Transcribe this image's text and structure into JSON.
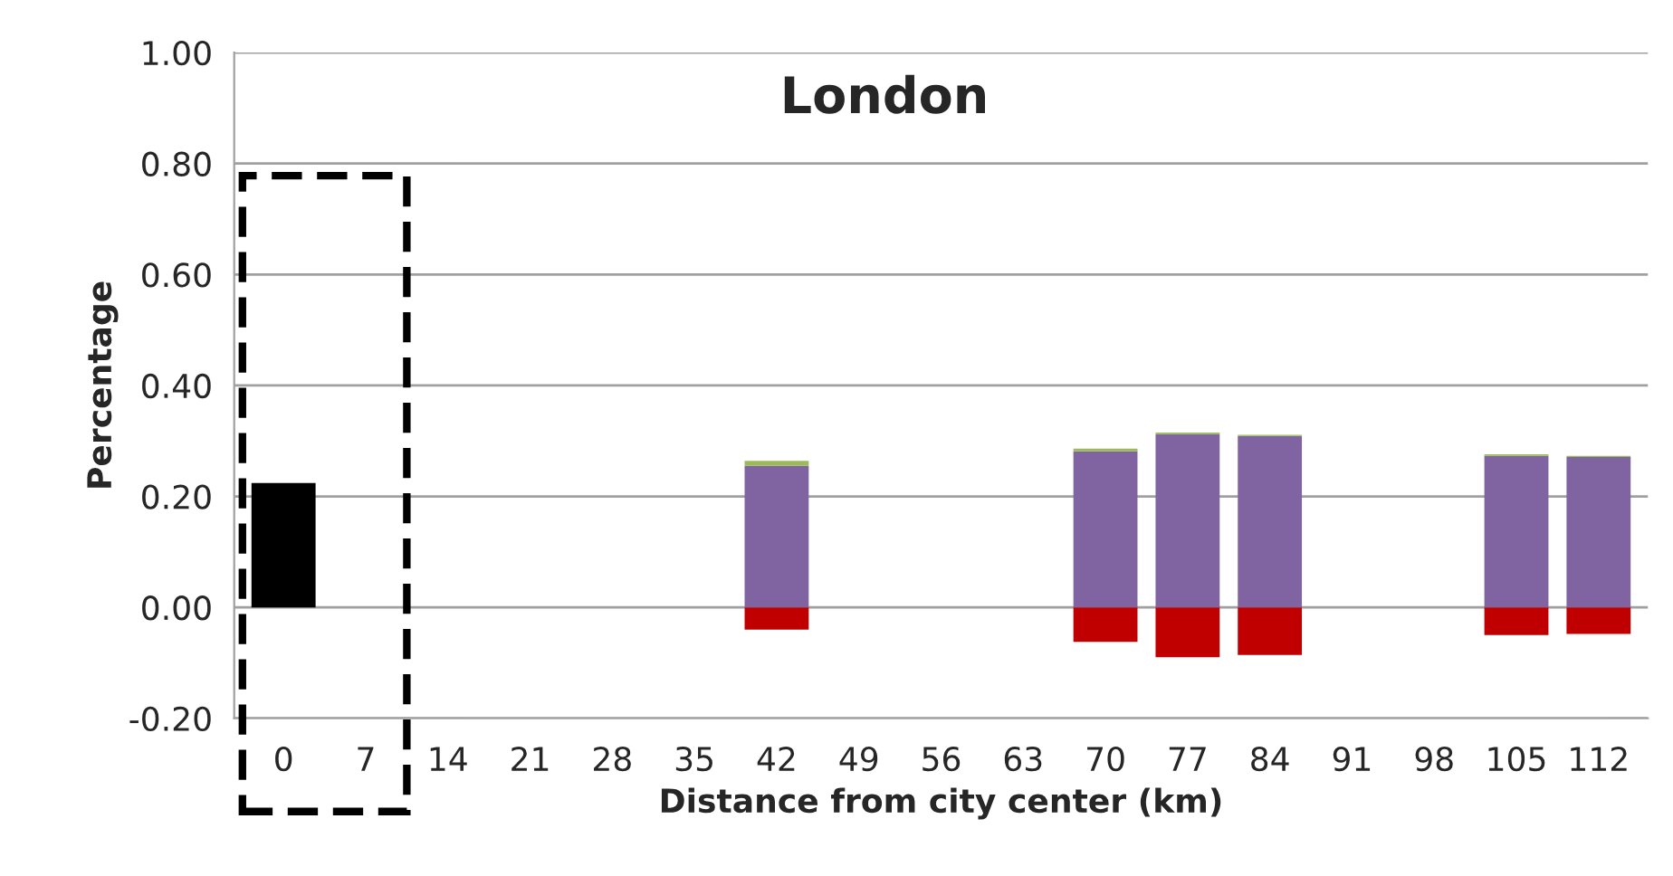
{
  "chart_data": {
    "type": "bar",
    "title": "London",
    "xlabel": "Distance from city center (km)",
    "ylabel": "Percentage",
    "stacked": true,
    "categories": [
      "0",
      "7",
      "14",
      "21",
      "28",
      "35",
      "42",
      "49",
      "56",
      "63",
      "70",
      "77",
      "84",
      "91",
      "98",
      "105",
      "112"
    ],
    "series": [
      {
        "color": "#000000",
        "values": [
          0.224,
          null,
          null,
          null,
          null,
          null,
          null,
          null,
          null,
          null,
          null,
          null,
          null,
          null,
          null,
          null,
          null
        ]
      },
      {
        "color": "#8064a2",
        "values": [
          null,
          null,
          null,
          null,
          null,
          null,
          0.255,
          null,
          null,
          null,
          0.281,
          0.312,
          0.309,
          null,
          null,
          0.273,
          0.271
        ]
      },
      {
        "color": "#9bbb59",
        "values": [
          null,
          null,
          null,
          null,
          null,
          null,
          0.009,
          null,
          null,
          null,
          0.005,
          0.003,
          0.002,
          null,
          null,
          0.003,
          0.002
        ]
      },
      {
        "color": "#c00000",
        "values": [
          null,
          null,
          null,
          null,
          null,
          null,
          -0.04,
          null,
          null,
          null,
          -0.062,
          -0.09,
          -0.086,
          null,
          null,
          -0.05,
          -0.048
        ]
      }
    ],
    "ylim": [
      -0.2,
      1.0
    ],
    "yticks": [
      {
        "value": -0.2,
        "label": "-0.20"
      },
      {
        "value": 0,
        "label": "0.00"
      },
      {
        "value": 0.2,
        "label": "0.20"
      },
      {
        "value": 0.4,
        "label": "0.40"
      },
      {
        "value": 0.6,
        "label": "0.60"
      },
      {
        "value": 0.8,
        "label": "0.80"
      },
      {
        "value": 1.0,
        "label": "1.00"
      }
    ],
    "grid": "y"
  }
}
